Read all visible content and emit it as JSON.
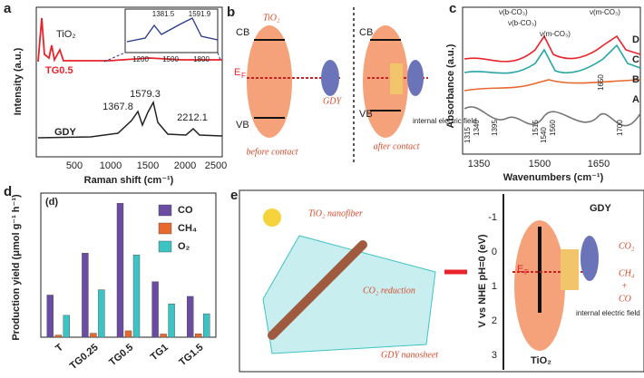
{
  "panel_a": {
    "label": "a",
    "y_label": "Intensity (a.u.)",
    "x_label": "Raman shift (cm⁻¹)",
    "x_ticks": [
      "500",
      "1000",
      "1500",
      "2000",
      "2500"
    ],
    "curve_labels": [
      "TiO₂",
      "TG0.5",
      "GDY"
    ],
    "peaks": [
      "1579.3",
      "1367.8",
      "2212.1"
    ],
    "inset_peaks": [
      "1381.5",
      "1591.9"
    ],
    "inset_ticks": [
      "1200",
      "1500",
      "1800"
    ]
  },
  "panel_b": {
    "label": "b",
    "tio2": "TiO₂",
    "cb": "CB",
    "vb": "VB",
    "ef": "E",
    "ef_sub": "F",
    "gdy": "GDY",
    "before": "before contact",
    "after": "after contact",
    "field": "internal electric field"
  },
  "panel_c": {
    "label": "c",
    "y_label": "Absorbance (a.u.)",
    "x_label": "Wavenumbers (cm⁻¹)",
    "x_ticks": [
      "1350",
      "1500",
      "1650"
    ],
    "bands": [
      "ν(b-CO₃)",
      "ν(m-CO₃)",
      "ν(b-CO₃)",
      "ν(m-CO₃)"
    ],
    "curves": [
      "D",
      "C",
      "B",
      "A"
    ],
    "peaks": [
      "1315",
      "1340",
      "1395",
      "1515",
      "1540",
      "1560",
      "1650",
      "1700"
    ]
  },
  "chart_data": {
    "type": "bar",
    "panel_label": "d",
    "inner_label": "(d)",
    "y_label": "Production yield (μmol g⁻¹ h⁻¹)",
    "categories": [
      "T",
      "TG0.25",
      "TG0.5",
      "TG1",
      "TG1.5"
    ],
    "ylim": [
      0,
      54
    ],
    "series": [
      {
        "name": "CO",
        "color": "#6a4ca3",
        "values": [
          15.8,
          31.5,
          50.2,
          20.8,
          15.3
        ]
      },
      {
        "name": "CH₄",
        "color": "#e8692e",
        "values": [
          0.8,
          1.5,
          2.4,
          1.2,
          1.3
        ]
      },
      {
        "name": "O₂",
        "color": "#3cc4c4",
        "values": [
          8.2,
          17.8,
          30.8,
          12.5,
          8.8
        ]
      }
    ]
  },
  "panel_e": {
    "label": "e",
    "nanofiber": "TiO₂ nanofiber",
    "reduction": "CO₂ reduction",
    "sheet": "GDY nanosheet",
    "y_label": "V vs NHE pH=0 (eV)",
    "ticks": [
      "-1",
      "0",
      "1",
      "2",
      "3"
    ],
    "gdy": "GDY",
    "ef": "E",
    "ef_sub": "F",
    "co2": "CO₂",
    "ch4": "CH₄",
    "plus": "+",
    "co": "CO",
    "field": "internal electric field",
    "tio2": "TiO₂"
  }
}
